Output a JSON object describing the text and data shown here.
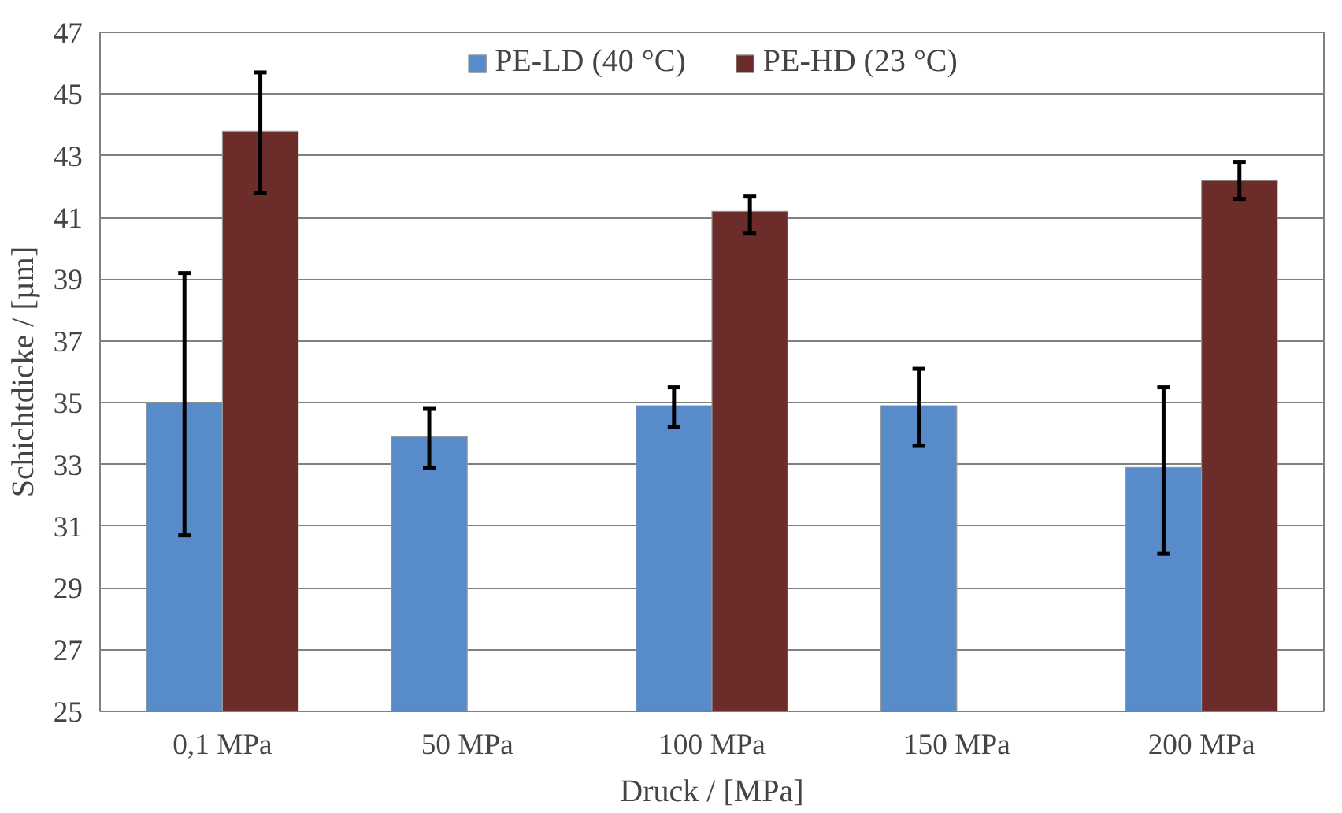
{
  "chart_data": {
    "type": "bar",
    "xlabel": "Druck / [MPa]",
    "ylabel": "Schichtdicke / [µm]",
    "categories": [
      "0,1 MPa",
      "50 MPa",
      "100 MPa",
      "150 MPa",
      "200 MPa"
    ],
    "series": [
      {
        "name": "PE-LD (40 °C)",
        "color": "#588bca",
        "values": [
          35.0,
          33.9,
          34.9,
          34.9,
          32.9
        ],
        "errors": [
          [
            30.7,
            39.2
          ],
          [
            32.9,
            34.8
          ],
          [
            34.2,
            35.5
          ],
          [
            33.6,
            36.1
          ],
          [
            30.1,
            35.5
          ]
        ]
      },
      {
        "name": "PE-HD (23 °C)",
        "color": "#6b2c2a",
        "values": [
          43.8,
          null,
          41.2,
          null,
          42.2
        ],
        "errors": [
          [
            41.8,
            45.7
          ],
          null,
          [
            40.5,
            41.7
          ],
          null,
          [
            41.6,
            42.8
          ]
        ]
      }
    ],
    "ylim": [
      25,
      47
    ],
    "yticks": [
      25,
      27,
      29,
      31,
      33,
      35,
      37,
      39,
      41,
      43,
      45,
      47
    ],
    "grid": "y",
    "legend": "top"
  }
}
